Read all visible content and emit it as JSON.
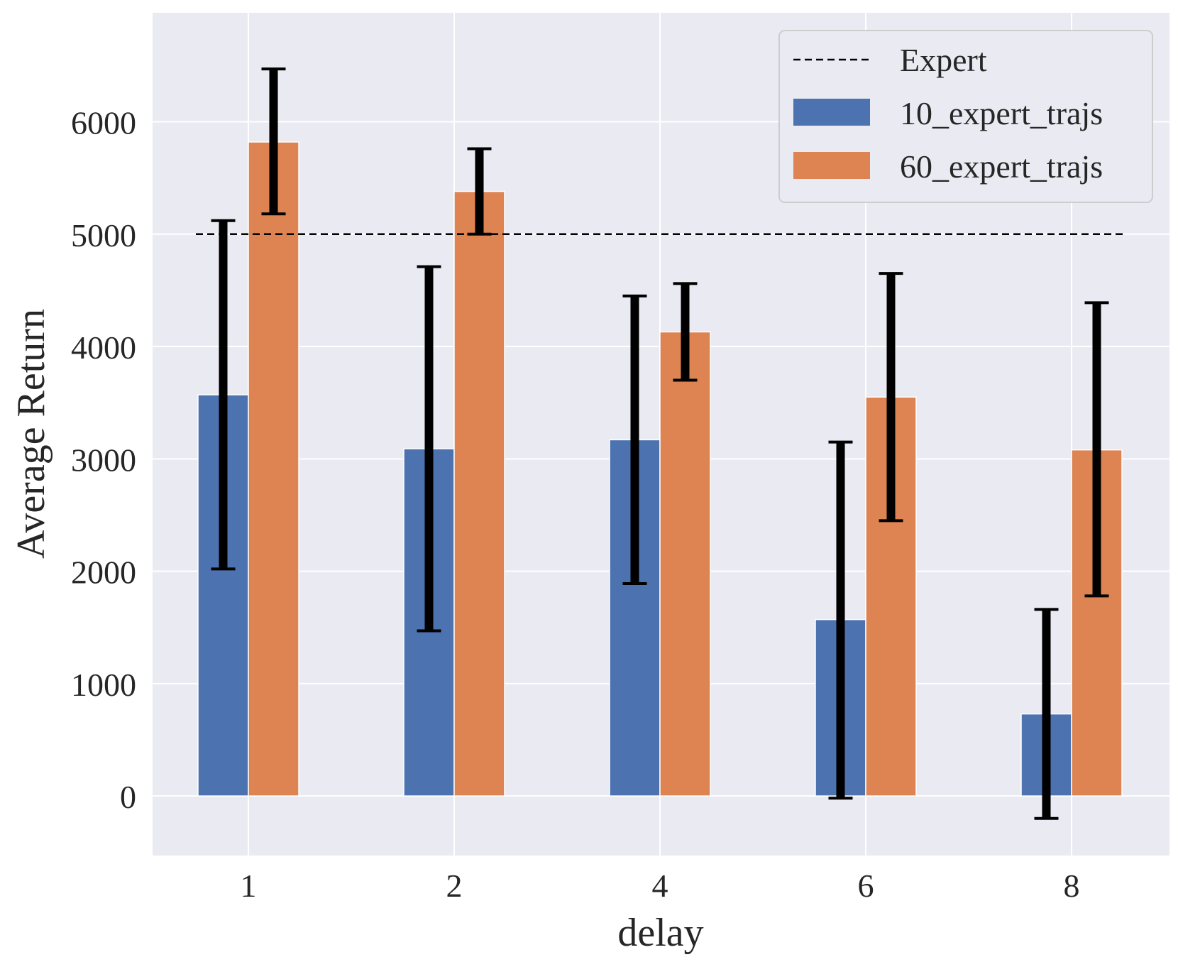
{
  "chart_data": {
    "type": "bar",
    "xlabel": "delay",
    "ylabel": "Average Return",
    "categories": [
      "1",
      "2",
      "4",
      "6",
      "8"
    ],
    "ylim": [
      -530,
      6970
    ],
    "yticks": [
      0,
      1000,
      2000,
      3000,
      4000,
      5000,
      6000
    ],
    "grid": true,
    "legend_position": "top-right",
    "series": [
      {
        "name": "10_expert_trajs",
        "color": "#4c72b0",
        "values": [
          3570,
          3090,
          3170,
          1570,
          730
        ],
        "error_low": [
          2020,
          1470,
          1890,
          -20,
          -200
        ],
        "error_high": [
          5120,
          4710,
          4450,
          3150,
          1660
        ]
      },
      {
        "name": "60_expert_trajs",
        "color": "#dd8452",
        "values": [
          5820,
          5380,
          4130,
          3550,
          3080
        ],
        "error_low": [
          5180,
          5000,
          3700,
          2450,
          1780
        ],
        "error_high": [
          6470,
          5760,
          4560,
          4650,
          4390
        ]
      }
    ],
    "reference_line": {
      "name": "Expert",
      "value": 5000,
      "style": "dashed",
      "color": "#000000"
    }
  }
}
